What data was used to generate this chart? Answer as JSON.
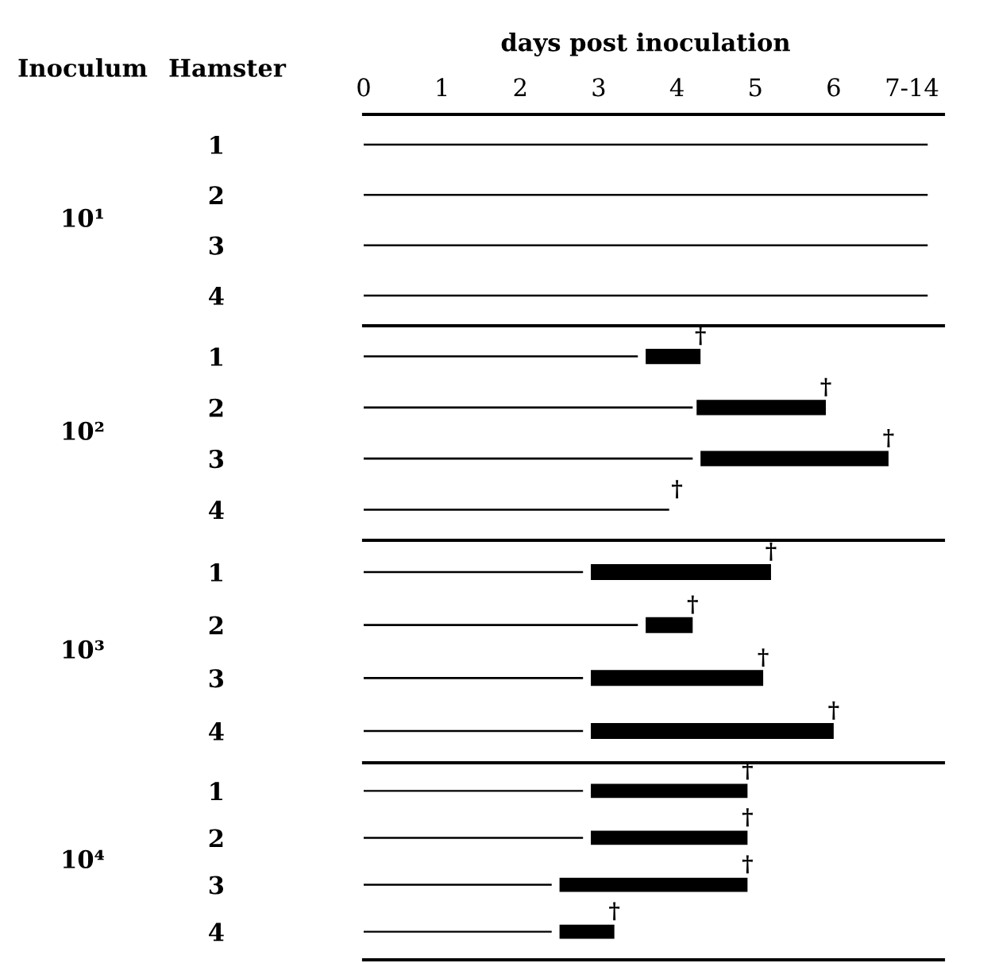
{
  "chart_data": [
    {
      "type": "bar",
      "orientation": "horizontal",
      "title": "days post inoculation",
      "ylabel": "10¹",
      "categories": [
        "1",
        "2",
        "3",
        "4"
      ],
      "xlim": [
        0,
        7.4
      ],
      "xticks": [
        0,
        1,
        2,
        3,
        4,
        5,
        6,
        {
          "value": 7,
          "label": "7-14"
        }
      ],
      "grid": false,
      "legend": false,
      "annotations": [
        "Inoculum",
        "Hamster"
      ],
      "series": [
        {
          "color": "#000000",
          "values": [
            7.2,
            7.2,
            7.2,
            7.2
          ]
        }
      ]
    },
    {
      "type": "bar",
      "orientation": "horizontal",
      "ylabel": "10²",
      "categories": [
        "1",
        "2",
        "3",
        "4"
      ],
      "xlim": [
        0,
        7.4
      ],
      "tick_labels": "y",
      "grid": false,
      "legend": false,
      "annotations": [
        {
          "text": "†",
          "x": 4.3,
          "y": "1"
        },
        {
          "text": "†",
          "x": 5.9,
          "y": "2"
        },
        {
          "text": "†",
          "x": 6.7,
          "y": "3"
        },
        {
          "text": "†",
          "x": 4.0,
          "y": "4"
        }
      ],
      "series": [
        {
          "color": "#000000",
          "values": [
            3.5,
            4.2,
            4.2,
            3.9
          ]
        },
        {
          "color": "#000000",
          "base": [
            3.6,
            4.25,
            4.3,
            null
          ],
          "values": [
            0.7,
            1.65,
            2.4,
            null
          ]
        }
      ]
    },
    {
      "type": "bar",
      "orientation": "horizontal",
      "ylabel": "10³",
      "categories": [
        "1",
        "2",
        "3",
        "4"
      ],
      "xlim": [
        0,
        7.4
      ],
      "tick_labels": "y",
      "grid": false,
      "legend": false,
      "annotations": [
        {
          "text": "†",
          "x": 5.2,
          "y": "1"
        },
        {
          "text": "†",
          "x": 4.2,
          "y": "2"
        },
        {
          "text": "†",
          "x": 5.1,
          "y": "3"
        },
        {
          "text": "†",
          "x": 6.0,
          "y": "4"
        }
      ],
      "series": [
        {
          "color": "#000000",
          "values": [
            2.8,
            3.5,
            2.8,
            2.8
          ]
        },
        {
          "color": "#000000",
          "base": [
            2.9,
            3.6,
            2.9,
            2.9
          ],
          "values": [
            2.3,
            0.6,
            2.2,
            3.1
          ]
        }
      ]
    },
    {
      "type": "bar",
      "orientation": "horizontal",
      "ylabel": "10⁴",
      "categories": [
        "1",
        "2",
        "3",
        "4"
      ],
      "xlim": [
        0,
        7.4
      ],
      "tick_labels": "y",
      "grid": false,
      "legend": false,
      "annotations": [
        {
          "text": "†",
          "x": 4.9,
          "y": "1"
        },
        {
          "text": "†",
          "x": 4.9,
          "y": "2"
        },
        {
          "text": "†",
          "x": 4.9,
          "y": "3"
        },
        {
          "text": "†",
          "x": 3.2,
          "y": "4"
        }
      ],
      "series": [
        {
          "color": "#000000",
          "values": [
            2.8,
            2.8,
            2.4,
            2.4
          ]
        },
        {
          "color": "#000000",
          "base": [
            2.9,
            2.9,
            2.5,
            2.5
          ],
          "values": [
            2.0,
            2.0,
            2.4,
            0.7
          ]
        }
      ]
    }
  ]
}
